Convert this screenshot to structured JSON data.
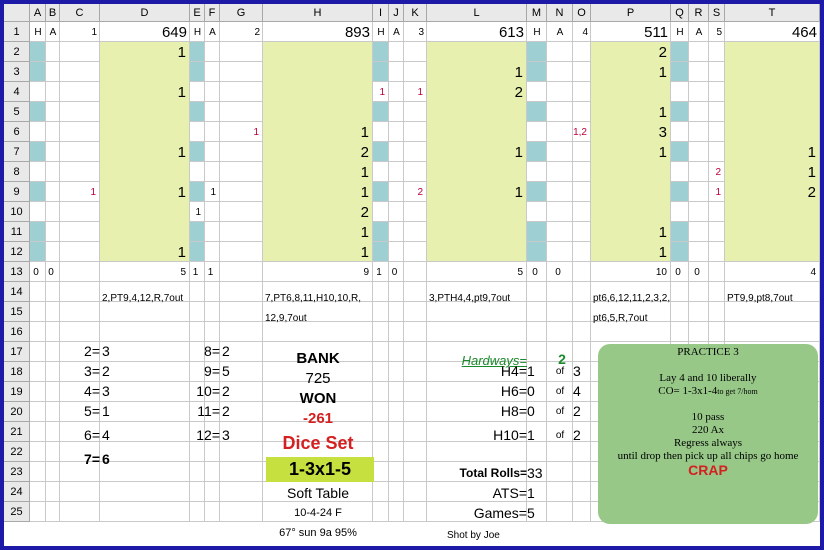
{
  "columns": [
    "A",
    "B",
    "C",
    "D",
    "E",
    "F",
    "G",
    "H",
    "I",
    "J",
    "K",
    "L",
    "M",
    "N",
    "O",
    "P",
    "Q",
    "R",
    "S",
    "T"
  ],
  "rows": [
    "1",
    "2",
    "3",
    "4",
    "5",
    "6",
    "7",
    "8",
    "9",
    "10",
    "11",
    "12",
    "13",
    "14",
    "15",
    "16",
    "17",
    "18",
    "19",
    "20",
    "21",
    "22",
    "23",
    "24",
    "25"
  ],
  "row1": {
    "A": "H",
    "B": "A",
    "C": "1",
    "D": "649",
    "E": "H",
    "F": "A",
    "G": "2",
    "H": "893",
    "I": "H",
    "J": "A",
    "K": "3",
    "L": "613",
    "M": "H",
    "N": "A",
    "O": "4",
    "P": "511",
    "Q": "H",
    "R": "A",
    "S": "5",
    "T": "464"
  },
  "data_cells": [
    {
      "col": "D",
      "row": 2,
      "text": "1"
    },
    {
      "col": "L",
      "row": 2,
      "text": ""
    },
    {
      "col": "P",
      "row": 2,
      "text": "2"
    },
    {
      "col": "L",
      "row": 3,
      "text": "1"
    },
    {
      "col": "P",
      "row": 3,
      "text": "1"
    },
    {
      "col": "D",
      "row": 4,
      "text": "1"
    },
    {
      "col": "I",
      "row": 4,
      "text": "1"
    },
    {
      "col": "K",
      "row": 4,
      "text": "1"
    },
    {
      "col": "L",
      "row": 4,
      "text": "2"
    },
    {
      "col": "P",
      "row": 5,
      "text": "1"
    },
    {
      "col": "G",
      "row": 6,
      "text": "1"
    },
    {
      "col": "H",
      "row": 6,
      "text": "1"
    },
    {
      "col": "O",
      "row": 6,
      "text": "1,2"
    },
    {
      "col": "P",
      "row": 6,
      "text": "3"
    },
    {
      "col": "D",
      "row": 7,
      "text": "1"
    },
    {
      "col": "H",
      "row": 7,
      "text": "2"
    },
    {
      "col": "L",
      "row": 7,
      "text": "1"
    },
    {
      "col": "P",
      "row": 7,
      "text": "1"
    },
    {
      "col": "T",
      "row": 7,
      "text": "1"
    },
    {
      "col": "H",
      "row": 8,
      "text": "1"
    },
    {
      "col": "S",
      "row": 8,
      "text": "2"
    },
    {
      "col": "T",
      "row": 8,
      "text": "1"
    },
    {
      "col": "C",
      "row": 9,
      "text": "1"
    },
    {
      "col": "D",
      "row": 9,
      "text": "1"
    },
    {
      "col": "F",
      "row": 9,
      "text": "1"
    },
    {
      "col": "H",
      "row": 9,
      "text": "1"
    },
    {
      "col": "K",
      "row": 9,
      "text": "2"
    },
    {
      "col": "L",
      "row": 9,
      "text": "1"
    },
    {
      "col": "S",
      "row": 9,
      "text": "1"
    },
    {
      "col": "T",
      "row": 9,
      "text": "2"
    },
    {
      "col": "E",
      "row": 10,
      "text": "1"
    },
    {
      "col": "H",
      "row": 10,
      "text": "2"
    },
    {
      "col": "H",
      "row": 11,
      "text": "1"
    },
    {
      "col": "P",
      "row": 11,
      "text": "1"
    },
    {
      "col": "D",
      "row": 12,
      "text": "1"
    },
    {
      "col": "H",
      "row": 12,
      "text": "1"
    },
    {
      "col": "P",
      "row": 12,
      "text": "1"
    },
    {
      "col": "A",
      "row": 13,
      "text": "0"
    },
    {
      "col": "B",
      "row": 13,
      "text": "0"
    },
    {
      "col": "D",
      "row": 13,
      "text": "5"
    },
    {
      "col": "E",
      "row": 13,
      "text": "1"
    },
    {
      "col": "F",
      "row": 13,
      "text": "1"
    },
    {
      "col": "H",
      "row": 13,
      "text": "9"
    },
    {
      "col": "I",
      "row": 13,
      "text": "1"
    },
    {
      "col": "J",
      "row": 13,
      "text": "0"
    },
    {
      "col": "L",
      "row": 13,
      "text": "5"
    },
    {
      "col": "M",
      "row": 13,
      "text": "0"
    },
    {
      "col": "N",
      "row": 13,
      "text": "0"
    },
    {
      "col": "P",
      "row": 13,
      "text": "10"
    },
    {
      "col": "Q",
      "row": 13,
      "text": "0"
    },
    {
      "col": "R",
      "row": 13,
      "text": "0"
    },
    {
      "col": "T",
      "row": 13,
      "text": "4"
    }
  ],
  "notes": {
    "d14": "2,PT9,4,12,R,7out",
    "h14": "7,PT6,8,11,H10,10,R,",
    "h15": "12,9,7out",
    "l14": "3,PTH4,4,pt9,7out",
    "p14": "pt6,6,12,11,2,3,2,",
    "p15": "pt6,5,R,7out",
    "t14": "PT9,9,pt8,7out"
  },
  "totals_left": [
    {
      "label": "2=",
      "value": "3"
    },
    {
      "label": "3=",
      "value": "2"
    },
    {
      "label": "4=",
      "value": "3"
    },
    {
      "label": "5=",
      "value": "1"
    },
    {
      "label": "6=",
      "value": "4"
    },
    {
      "label": "7=",
      "value": "6"
    }
  ],
  "totals_mid": [
    {
      "label": "8=",
      "value": "2"
    },
    {
      "label": "9=",
      "value": "5"
    },
    {
      "label": "10=",
      "value": "2"
    },
    {
      "label": "11=",
      "value": "2"
    },
    {
      "label": "12=",
      "value": "3"
    }
  ],
  "bank": {
    "bank_label": "BANK",
    "bank_value": "725",
    "won_label": "WON",
    "won_value": "-261",
    "dice_set_label": "Dice Set",
    "dice_set_value": "1-3x1-5",
    "table": "Soft Table",
    "date": "10-4-24 F",
    "weather": "67° sun 9a 95%"
  },
  "hardways": {
    "title": "Hardways=",
    "total": "2",
    "rows": [
      {
        "label": "H4=",
        "value": "1",
        "of": "of",
        "out_of": "3"
      },
      {
        "label": "H6=",
        "value": "0",
        "of": "of",
        "out_of": "4"
      },
      {
        "label": "H8=",
        "value": "0",
        "of": "of",
        "out_of": "2"
      },
      {
        "label": "H10=",
        "value": "1",
        "of": "of",
        "out_of": "2"
      }
    ]
  },
  "summary": {
    "total_rolls_label": "Total Rolls=",
    "total_rolls": "33",
    "ats_label": "ATS=",
    "ats": "1",
    "games_label": "Games=",
    "games": "5",
    "shooter": "Shot by Joe"
  },
  "practice": {
    "title": "PRACTICE 3",
    "line1": "Lay 4 and 10 liberally",
    "line2a": "CO= 1-3x1-4",
    "line2b": "to get 7/hom",
    "line3": "10 pass",
    "line4": "220 Ax",
    "line5": "Regress always",
    "line6": "until drop then pick up all chips go home",
    "result": "CRAP"
  },
  "colors": {
    "border": "#1d1aa8",
    "teal": "#9ed0d3",
    "yellow_fill": "#e8f0b0",
    "dice_set_fill": "#c6e040",
    "practice_box": "#97c888",
    "red_text": "#d42020",
    "hardways_text": "#1a8a2a"
  }
}
